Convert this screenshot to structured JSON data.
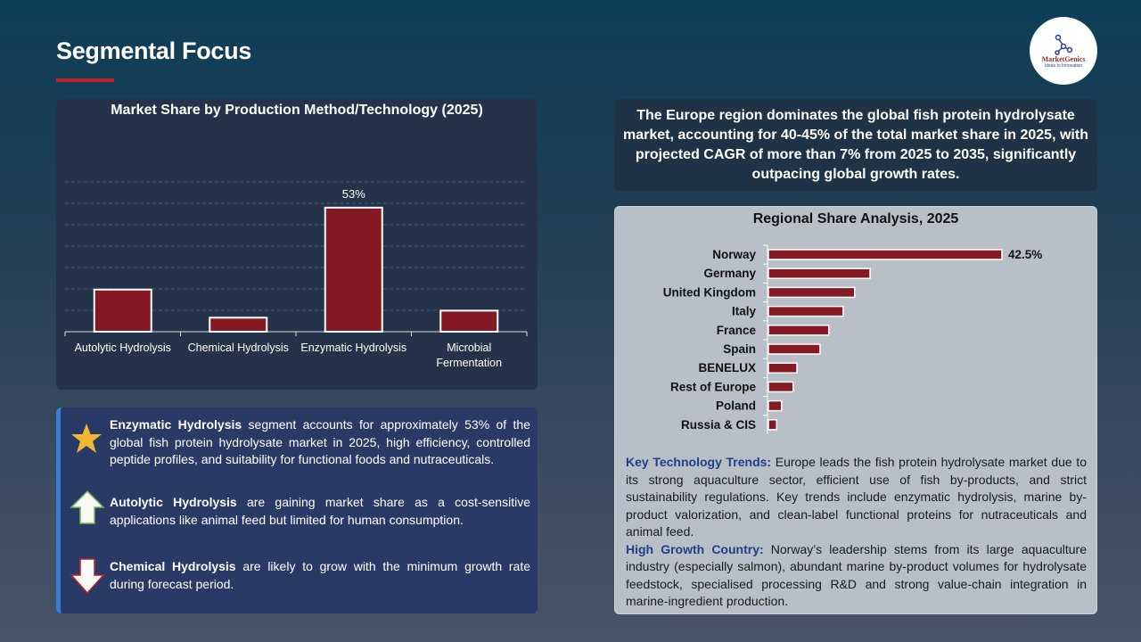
{
  "page": {
    "title": "Segmental Focus"
  },
  "logo": {
    "name": "MarketGenics",
    "tagline": "Ideas to Innovation"
  },
  "chart_data": [
    {
      "type": "bar",
      "title": "Market Share by Production Method/Technology (2025)",
      "categories": [
        "Autolytic Hydrolysis",
        "Chemical Hydrolysis",
        "Enzymatic Hydrolysis",
        "Microbial Fermentation"
      ],
      "values": [
        18,
        6,
        53,
        9
      ],
      "data_labels": [
        "",
        "",
        "53%",
        ""
      ],
      "ylim": [
        0,
        64
      ],
      "grid": true,
      "bar_color": "#861a24",
      "unit": "%"
    },
    {
      "type": "bar",
      "orientation": "horizontal",
      "title": "Regional Share Analysis, 2025",
      "categories": [
        "Norway",
        "Germany",
        "United Kingdom",
        "Italy",
        "France",
        "Spain",
        "BENELUX",
        "Rest of Europe",
        "Poland",
        "Russia & CIS"
      ],
      "values": [
        42.5,
        18.5,
        15.7,
        13.6,
        11,
        9.4,
        5.2,
        4.5,
        2.4,
        1.5
      ],
      "data_labels": [
        "42.5%",
        "",
        "",
        "",
        "",
        "",
        "",
        "",
        "",
        ""
      ],
      "xlim": [
        0,
        42.5
      ],
      "grid": false,
      "bar_color": "#861a24",
      "unit": "%"
    }
  ],
  "bullets": [
    {
      "icon": "star-icon",
      "bold": "Enzymatic Hydrolysis",
      "text": " segment accounts for approximately 53% of the global fish protein hydrolysate market in 2025, high efficiency, controlled peptide profiles, and suitability for functional foods and nutraceuticals."
    },
    {
      "icon": "arrow-up-icon",
      "bold": "Autolytic Hydrolysis",
      "text": " are gaining market share as a cost-sensitive applications like animal feed but limited for human consumption."
    },
    {
      "icon": "arrow-down-icon",
      "bold": "Chemical Hydrolysis",
      "text": " are likely to grow with the minimum growth rate during forecast period."
    }
  ],
  "summary": "The Europe region dominates the global fish protein hydrolysate market, accounting for 40-45% of the total market share in 2025, with projected CAGR of more than 7% from 2025 to 2035, significantly outpacing global growth rates.",
  "trends": {
    "k1": "Key Technology Trends:",
    "t1": " Europe leads the fish protein hydrolysate market due to its strong aquaculture sector, efficient use of fish by-products, and strict sustainability regulations. Key trends include enzymatic hydrolysis, marine by-product valorization, and clean-label functional proteins for nutraceuticals and animal feed.",
    "k2": "High Growth Country:",
    "t2": " Norway’s leadership stems from its large aquaculture industry (especially salmon), abundant marine by-product volumes for hydrolysate feedstock, specialised processing R&D and strong value-chain integration in marine-ingredient production."
  },
  "colors": {
    "accent": "#c0202a",
    "bar": "#861a24",
    "key_text": "#1f3f8a"
  }
}
